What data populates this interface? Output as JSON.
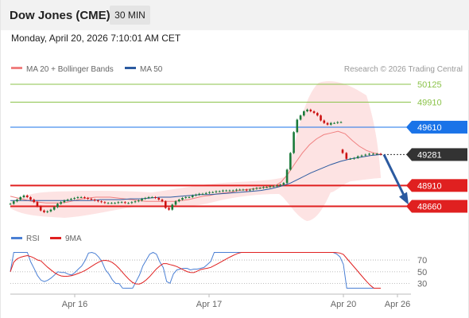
{
  "header": {
    "title": "Dow Jones (CME)",
    "interval": "30 MIN"
  },
  "datetime": "Monday, April 20, 2026 7:10:01 AM CET",
  "legend": {
    "items": [
      {
        "label": "MA 20 + Bollinger Bands",
        "color": "#f08080"
      },
      {
        "label": "MA 50",
        "color": "#2b5aa0"
      }
    ],
    "credit": "Research © 2026 Trading Central"
  },
  "colors": {
    "bullish": "#1a7a3a",
    "bearish": "#cc1111",
    "support": "#e02020",
    "resistance_green": "#8bc34a",
    "pivot_blue": "#1a73e8",
    "ma20": "#f08080",
    "ma50": "#2b5aa0",
    "band_fill": "#fde3e3",
    "rsi": "#4a7fd4",
    "rsi_ma": "#e02020",
    "arrow": "#2b5aa0"
  },
  "chart_data": [
    {
      "type": "line",
      "title": "",
      "description_free": true,
      "x_ticks": [
        "Apr 16",
        "Apr 17",
        "Apr 20",
        "Apr 26"
      ],
      "ylim": [
        48560,
        50220
      ],
      "levels": [
        {
          "value": 50125,
          "label": "50125",
          "kind": "resistance"
        },
        {
          "value": 49910,
          "label": "49910",
          "kind": "resistance"
        },
        {
          "value": 49610,
          "label": "49610",
          "kind": "pivot"
        },
        {
          "value": 49281,
          "label": "49281",
          "kind": "last"
        },
        {
          "value": 48910,
          "label": "48910",
          "kind": "support"
        },
        {
          "value": 48660,
          "label": "48660",
          "kind": "support"
        }
      ],
      "price_close": [
        48690,
        48720,
        48740,
        48770,
        48790,
        48770,
        48740,
        48710,
        48660,
        48610,
        48590,
        48600,
        48620,
        48650,
        48690,
        48710,
        48730,
        48740,
        48750,
        48760,
        48770,
        48770,
        48760,
        48750,
        48740,
        48730,
        48720,
        48710,
        48700,
        48700,
        48700,
        48700,
        48710,
        48710,
        48700,
        48700,
        48710,
        48720,
        48730,
        48750,
        48760,
        48770,
        48770,
        48760,
        48740,
        48720,
        48640,
        48620,
        48680,
        48720,
        48740,
        48760,
        48770,
        48770,
        48790,
        48800,
        48810,
        48810,
        48820,
        48830,
        48830,
        48840,
        48840,
        48850,
        48850,
        48850,
        48850,
        48860,
        48860,
        48860,
        48850,
        48860,
        48870,
        48880,
        48880,
        48890,
        48890,
        48900,
        48900,
        48910,
        48920,
        48940,
        49100,
        49300,
        49550,
        49700,
        49750,
        49800,
        49820,
        49800,
        49780,
        49750,
        49690,
        49660,
        49640,
        49660,
        49660,
        49670,
        49670
      ],
      "price_close_gap": [
        49300,
        49230,
        49230,
        49240,
        49260,
        49270,
        49280,
        49290,
        49290,
        49290,
        49281
      ],
      "projection": [
        [
          49281
        ],
        [
          48660
        ]
      ],
      "ma20": [
        48780,
        48760,
        48740,
        48720,
        48710,
        48700,
        48700,
        48700,
        48710,
        48730,
        48750,
        48760,
        48770,
        48770,
        48770,
        48760,
        48750,
        48740,
        48730,
        48720,
        48720,
        48720,
        48720,
        48720,
        48730,
        48740,
        48760,
        48780,
        48790,
        48810,
        48820,
        48830,
        48850,
        48860,
        48870,
        48880,
        48890,
        48900,
        48950,
        49050,
        49180,
        49300,
        49400,
        49470,
        49520,
        49540,
        49560,
        49530,
        49450,
        49380,
        49330,
        49300,
        49281
      ],
      "ma50": [
        48730,
        48730,
        48730,
        48730,
        48730,
        48730,
        48730,
        48730,
        48730,
        48740,
        48740,
        48740,
        48750,
        48750,
        48760,
        48770,
        48770,
        48780,
        48790,
        48800,
        48800,
        48810,
        48820,
        48830,
        48840,
        48850,
        48870,
        48900,
        48940,
        49000,
        49060,
        49110,
        49160,
        49200,
        49230,
        49250,
        49270,
        49281
      ],
      "rsi": {
        "label": "RSI",
        "ma_label": "9MA",
        "ticks": [
          70,
          50,
          30
        ],
        "ylim": [
          20,
          85
        ]
      }
    }
  ]
}
